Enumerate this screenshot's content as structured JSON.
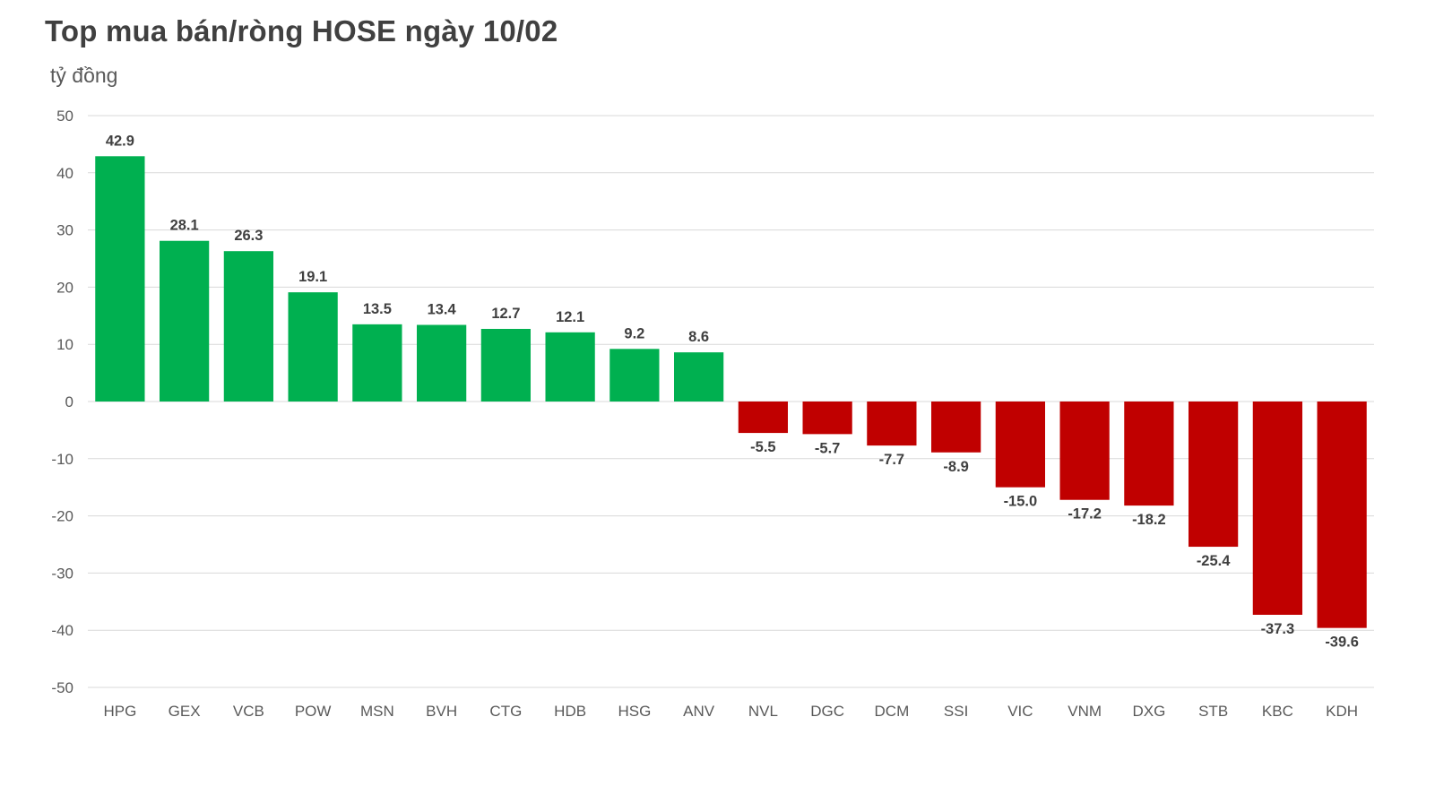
{
  "chart_data": {
    "type": "bar",
    "title": "Top mua bán/ròng HOSE ngày 10/02",
    "ylabel": "tỷ đồng",
    "xlabel": "",
    "categories": [
      "HPG",
      "GEX",
      "VCB",
      "POW",
      "MSN",
      "BVH",
      "CTG",
      "HDB",
      "HSG",
      "ANV",
      "NVL",
      "DGC",
      "DCM",
      "SSI",
      "VIC",
      "VNM",
      "DXG",
      "STB",
      "KBC",
      "KDH"
    ],
    "values": [
      42.9,
      28.1,
      26.3,
      19.1,
      13.5,
      13.4,
      12.7,
      12.1,
      9.2,
      8.6,
      -5.5,
      -5.7,
      -7.7,
      -8.9,
      -15.0,
      -17.2,
      -18.2,
      -25.4,
      -37.3,
      -39.6
    ],
    "data_labels": [
      "42.9",
      "28.1",
      "26.3",
      "19.1",
      "13.5",
      "13.4",
      "12.7",
      "12.1",
      "9.2",
      "8.6",
      "-5.5",
      "-5.7",
      "-7.7",
      "-8.9",
      "-15.0",
      "-17.2",
      "-18.2",
      "-25.4",
      "-37.3",
      "-39.6"
    ],
    "ylim": [
      -50,
      50
    ],
    "yticks": [
      50,
      40,
      30,
      20,
      10,
      0,
      -10,
      -20,
      -30,
      -40,
      -50
    ],
    "grid": true,
    "legend": "none",
    "colors": {
      "positive": "#00b050",
      "negative": "#c00000",
      "grid": "#d9d9d9",
      "text": "#595959",
      "label": "#404040"
    }
  }
}
